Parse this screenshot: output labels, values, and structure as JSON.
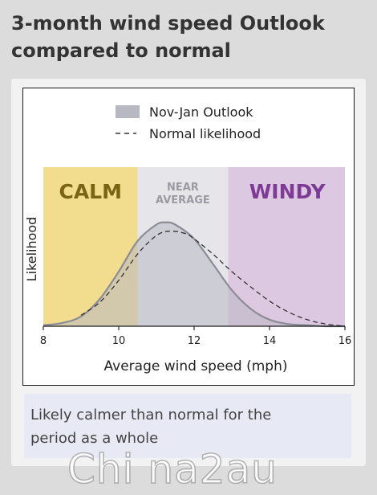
{
  "header": {
    "title_line1": "3-month wind speed Outlook",
    "title_line2": "compared to normal"
  },
  "caption": {
    "line1": "Likely calmer than normal for the",
    "line2": "period as a whole"
  },
  "watermark": "Chi na2au",
  "chart_data": {
    "type": "area",
    "xlabel": "Average wind speed (mph)",
    "ylabel": "Likelihood",
    "xlim": [
      8,
      16
    ],
    "ylim": [
      0,
      1
    ],
    "xticks": [
      8,
      10,
      12,
      14,
      16
    ],
    "grid": false,
    "legend_position": "top",
    "bands": [
      {
        "label": "CALM",
        "from": 8,
        "to": 10.5,
        "color": "#f2dc8e",
        "label_color": "#7a6313"
      },
      {
        "label": "NEAR AVERAGE",
        "line1": "NEAR",
        "line2": "AVERAGE",
        "from": 10.5,
        "to": 12.9,
        "color": "#e6e6ea",
        "label_color": "#9a9aa2"
      },
      {
        "label": "WINDY",
        "from": 12.9,
        "to": 16,
        "color": "#ddc8e2",
        "label_color": "#7e3b96"
      }
    ],
    "series": [
      {
        "name": "Nov-Jan Outlook",
        "style": "filled",
        "color": "#8c8c96",
        "fill": "#b8b8c2",
        "x": [
          8,
          8.5,
          9,
          9.5,
          10,
          10.5,
          11,
          11.25,
          11.5,
          12,
          12.5,
          13,
          13.5,
          14,
          14.5,
          15,
          15.5,
          16
        ],
        "y": [
          0.01,
          0.03,
          0.09,
          0.25,
          0.5,
          0.78,
          0.93,
          0.95,
          0.93,
          0.8,
          0.57,
          0.33,
          0.16,
          0.06,
          0.02,
          0.01,
          0.0,
          0.0
        ]
      },
      {
        "name": "Normal likelihood",
        "style": "dashed",
        "color": "#333333",
        "x": [
          9,
          9.5,
          10,
          10.5,
          11,
          11.35,
          11.75,
          12,
          12.5,
          13,
          13.5,
          14,
          14.5,
          15,
          15.5,
          16
        ],
        "y": [
          0.1,
          0.22,
          0.42,
          0.66,
          0.83,
          0.87,
          0.85,
          0.8,
          0.66,
          0.5,
          0.36,
          0.23,
          0.13,
          0.06,
          0.02,
          0.0
        ]
      }
    ]
  },
  "colors": {
    "background": "#dcdcdc",
    "panel": "#f2f2f2",
    "caption_bg": "#e7e9f5"
  }
}
